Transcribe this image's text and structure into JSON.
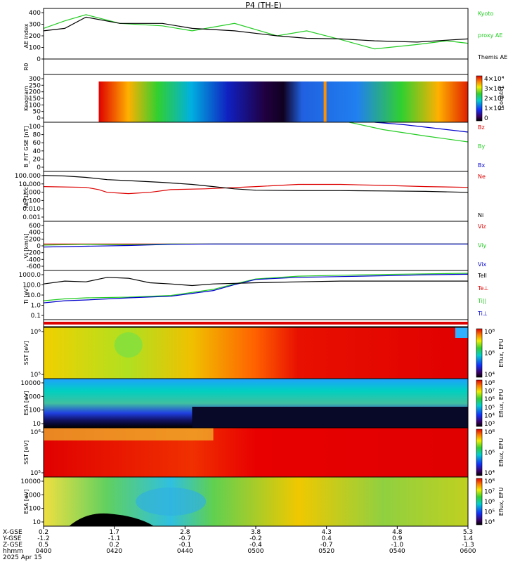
{
  "figure": {
    "title": "P4 (TH-E)",
    "footer": {
      "row_labels": [
        "X-GSE",
        "Y-GSE",
        "Z-GSE",
        "hhmm",
        "2025 Apr 15"
      ],
      "columns": [
        {
          "x": "0.2",
          "y": "-1.2",
          "z": "0.5",
          "t": "0400"
        },
        {
          "x": "1.7",
          "y": "-1.1",
          "z": "0.2",
          "t": "0420"
        },
        {
          "x": "2.8",
          "y": "-0.7",
          "z": "-0.1",
          "t": "0440"
        },
        {
          "x": "3.8",
          "y": "-0.2",
          "z": "-0.4",
          "t": "0500"
        },
        {
          "x": "4.3",
          "y": "0.4",
          "z": "-0.7",
          "t": "0520"
        },
        {
          "x": "4.8",
          "y": "0.9",
          "z": "-1.0",
          "t": "0540"
        },
        {
          "x": "5.3",
          "y": "1.4",
          "z": "-1.3",
          "t": "0600"
        }
      ]
    }
  },
  "chart_data": [
    {
      "type": "line",
      "ylabel": "AE index",
      "ylim": [
        -20,
        420
      ],
      "yticks": [
        "400",
        "300",
        "200",
        "100",
        "0"
      ],
      "legend": [
        "Kyoto",
        "proxy AE",
        "Themis AE"
      ],
      "series": [
        {
          "name": "Kyoto proxy AE",
          "color": "#22cc22",
          "x": [
            0,
            5,
            10,
            18,
            28,
            35,
            45,
            55,
            62,
            70,
            78,
            88,
            95,
            100
          ],
          "y": [
            260,
            320,
            370,
            300,
            280,
            240,
            300,
            200,
            240,
            170,
            95,
            130,
            160,
            140
          ]
        },
        {
          "name": "Themis AE",
          "color": "#000000",
          "x": [
            0,
            5,
            10,
            18,
            28,
            35,
            45,
            55,
            62,
            70,
            78,
            88,
            95,
            100
          ],
          "y": [
            240,
            260,
            350,
            300,
            300,
            260,
            240,
            200,
            180,
            175,
            160,
            150,
            165,
            175
          ]
        }
      ]
    },
    {
      "type": "line",
      "ylabel": "R0",
      "yticks": [],
      "series": []
    },
    {
      "type": "heatmap",
      "ylabel": "Keogram",
      "ylim": [
        0,
        300
      ],
      "yticks": [
        "300",
        "250",
        "200",
        "150",
        "100",
        "50",
        "0"
      ],
      "colorbar": {
        "label": "[counts]",
        "ticks": [
          "4×10⁴",
          "3×10⁴",
          "2×10⁴",
          "1×10⁴",
          "0"
        ]
      }
    },
    {
      "type": "line",
      "ylabel": "B_FIT GSE [nT]",
      "ylim": [
        0,
        100
      ],
      "yticks": [
        "100",
        "80",
        "60",
        "40",
        "20",
        "0"
      ],
      "legend": [
        "Bz",
        "By",
        "Bx"
      ],
      "series": [
        {
          "name": "By",
          "color": "#22cc22",
          "x": [
            72,
            80,
            90,
            100
          ],
          "y": [
            100,
            85,
            72,
            60
          ]
        },
        {
          "name": "Bx",
          "color": "#0000cc",
          "x": [
            78,
            85,
            92,
            100
          ],
          "y": [
            100,
            95,
            88,
            80
          ]
        }
      ]
    },
    {
      "type": "line",
      "ylabel": "Ni [1/cc]",
      "scale": "log",
      "ylim": [
        0.001,
        100
      ],
      "yticks": [
        "100.000",
        "10.000",
        "1.000",
        "0.100",
        "0.010",
        "0.001"
      ],
      "legend": [
        "Ne",
        "Ni"
      ],
      "series": [
        {
          "name": "Ne",
          "color": "#dd0000",
          "x": [
            0,
            10,
            13,
            15,
            20,
            25,
            30,
            38,
            50,
            60,
            70,
            80,
            90,
            100
          ],
          "y": [
            3,
            2.5,
            1.5,
            0.8,
            0.6,
            0.8,
            1.5,
            1.8,
            3,
            5,
            5,
            4,
            3,
            2.5
          ]
        },
        {
          "name": "Ni",
          "color": "#000000",
          "x": [
            0,
            5,
            10,
            15,
            20,
            28,
            35,
            40,
            45,
            50,
            60,
            70,
            80,
            90,
            100
          ],
          "y": [
            40,
            35,
            25,
            15,
            12,
            8,
            5,
            3,
            1.8,
            1.3,
            1.2,
            1.2,
            1.1,
            1.0,
            0.8
          ]
        }
      ]
    },
    {
      "type": "line",
      "ylabel": "Vi [km/s]",
      "ylim": [
        -700,
        600
      ],
      "yticks": [
        "600",
        "400",
        "200",
        "0",
        "-200",
        "-400",
        "-600"
      ],
      "legend": [
        "Viz",
        "Viy",
        "Vix"
      ],
      "series": [
        {
          "name": "Viz",
          "color": "#dd0000",
          "x": [
            0,
            20,
            40,
            60,
            80,
            100
          ],
          "y": [
            0,
            0,
            0,
            0,
            0,
            0
          ]
        },
        {
          "name": "Viy",
          "color": "#22cc22",
          "x": [
            0,
            10,
            20,
            30,
            40,
            100
          ],
          "y": [
            -30,
            -10,
            -20,
            0,
            0,
            0
          ]
        },
        {
          "name": "Vix",
          "color": "#0000cc",
          "x": [
            0,
            10,
            20,
            30,
            40,
            100
          ],
          "y": [
            -80,
            -60,
            -40,
            -10,
            0,
            0
          ]
        }
      ]
    },
    {
      "type": "line",
      "ylabel": "Ti [eV]",
      "scale": "log",
      "ylim": [
        0.05,
        8000
      ],
      "yticks": [
        "1000.0",
        "100.0",
        "10.0",
        "1.0",
        "0.1"
      ],
      "legend": [
        "Tell",
        "Te⊥",
        "Ti||",
        "Ti⊥"
      ],
      "series": [
        {
          "name": "Ti||",
          "color": "#22cc22",
          "x": [
            0,
            5,
            10,
            20,
            30,
            40,
            45,
            50,
            60,
            70,
            80,
            90,
            100
          ],
          "y": [
            5,
            8,
            10,
            12,
            18,
            80,
            300,
            1000,
            2000,
            2500,
            3000,
            3500,
            4000
          ]
        },
        {
          "name": "Ti⊥",
          "color": "#0000cc",
          "x": [
            0,
            5,
            10,
            20,
            30,
            40,
            45,
            50,
            60,
            70,
            80,
            90,
            100
          ],
          "y": [
            3,
            5,
            6,
            10,
            15,
            60,
            250,
            900,
            1500,
            1800,
            2200,
            2800,
            3200
          ]
        },
        {
          "name": "Tell",
          "color": "#000000",
          "x": [
            0,
            5,
            10,
            15,
            20,
            25,
            30,
            35,
            40,
            50,
            60,
            70,
            80,
            100
          ],
          "y": [
            300,
            600,
            500,
            1500,
            1200,
            400,
            300,
            200,
            300,
            400,
            500,
            600,
            600,
            600
          ]
        }
      ]
    },
    {
      "type": "line",
      "ylabel": "",
      "yticks": [],
      "series": []
    },
    {
      "type": "heatmap",
      "ylabel": "SST [eV]",
      "yticks": [
        "10⁶",
        "10⁵"
      ],
      "colorbar": {
        "label": "Eflux, EFU",
        "ticks": [
          "10⁸",
          "10⁶",
          "10⁴"
        ]
      }
    },
    {
      "type": "heatmap",
      "ylabel": "ESA [eV]",
      "yticks": [
        "10000",
        "1000",
        "100",
        "10"
      ],
      "colorbar": {
        "label": "Eflux, EFU",
        "ticks": [
          "10⁸",
          "10⁷",
          "10⁶",
          "10⁵",
          "10⁴",
          "10³"
        ]
      }
    },
    {
      "type": "heatmap",
      "ylabel": "SST [eV]",
      "yticks": [
        "10⁶",
        "10⁵"
      ],
      "colorbar": {
        "label": "Eflux, EFU",
        "ticks": [
          "10⁸",
          "10⁶",
          "10⁴"
        ]
      }
    },
    {
      "type": "heatmap",
      "ylabel": "ESA [eV]",
      "yticks": [
        "10000",
        "1000",
        "100",
        "10"
      ],
      "colorbar": {
        "label": "Eflux, EFU",
        "ticks": [
          "10⁸",
          "10⁷",
          "10⁶",
          "10⁵",
          "10⁴"
        ]
      }
    }
  ]
}
